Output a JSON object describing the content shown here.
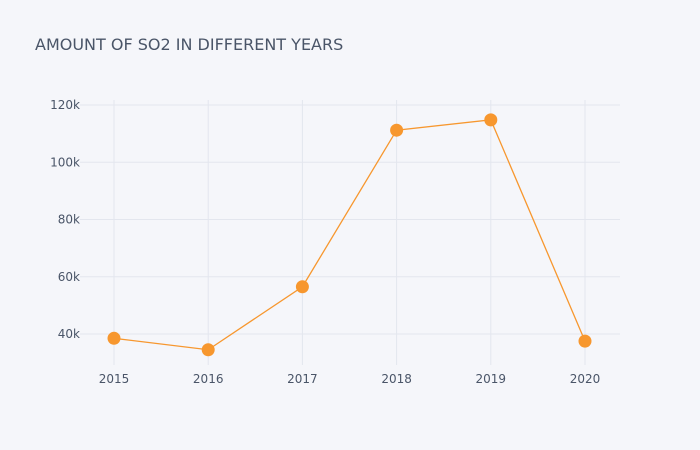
{
  "chart_data": {
    "type": "line",
    "title": "AMOUNT OF SO2 IN DIFFERENT YEARS",
    "xlabel": "",
    "ylabel": "",
    "categories": [
      "2015",
      "2016",
      "2017",
      "2018",
      "2019",
      "2020"
    ],
    "series": [
      {
        "values": [
          38500,
          34500,
          56500,
          111200,
          114800,
          37500
        ],
        "color": "#f7972e"
      }
    ],
    "ylim": [
      31000,
      123000
    ],
    "yticks": [
      40000,
      60000,
      80000,
      100000,
      120000
    ],
    "ytick_labels": [
      "40k",
      "60k",
      "80k",
      "100k",
      "120k"
    ],
    "grid": true,
    "legend": "none"
  }
}
